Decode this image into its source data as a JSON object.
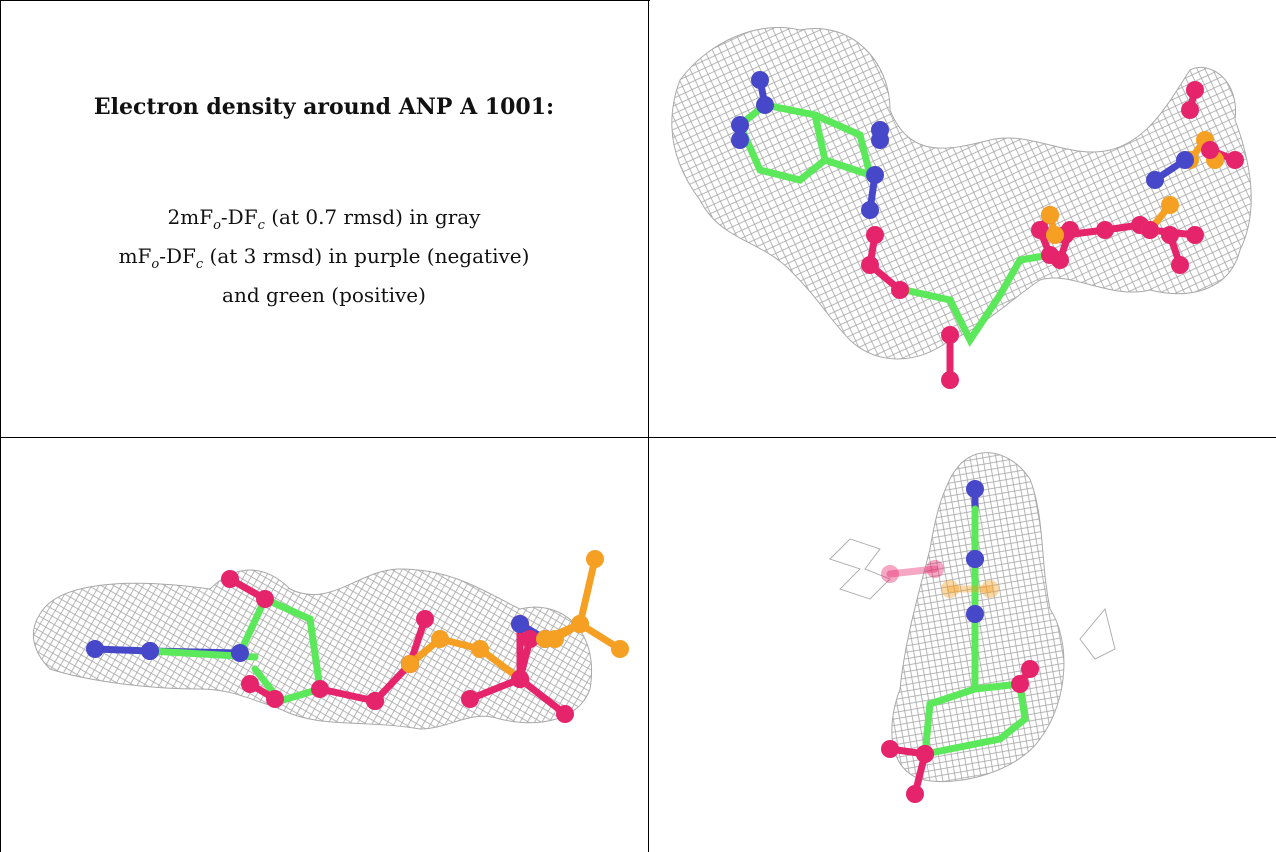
{
  "caption": {
    "title": "Electron density around ANP A 1001:",
    "line1_pre": "2mF",
    "line1_sub1": "o",
    "line1_mid": "-DF",
    "line1_sub2": "c",
    "line1_post": " (at 0.7 rmsd) in gray",
    "line2_pre": "mF",
    "line2_sub1": "o",
    "line2_mid": "-DF",
    "line2_sub2": "c",
    "line2_post": " (at 3 rmsd) in purple (negative)",
    "line3": "and green (positive)"
  },
  "colors": {
    "mesh": "#a9a9a9",
    "carbon": "#5be85b",
    "nitrogen": "#4747c9",
    "oxygen": "#e6246b",
    "phosphorus": "#f5a023"
  },
  "panels": [
    {
      "view": "top-right"
    },
    {
      "view": "bottom-left"
    },
    {
      "view": "bottom-right"
    }
  ]
}
